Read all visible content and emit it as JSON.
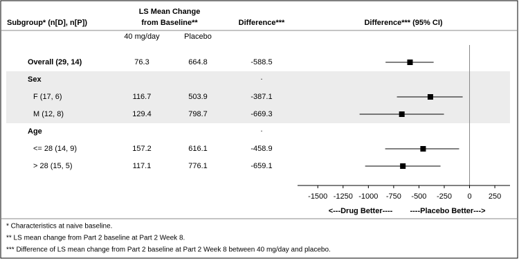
{
  "chart_data": {
    "type": "forest",
    "headers": {
      "subgroup": "Subgroup* (n[D], n[P])",
      "ls_mean": [
        "LS Mean Change",
        "from Baseline**"
      ],
      "difference": "Difference***",
      "plot": "Difference*** (95% CI)"
    },
    "subheaders": [
      "40 mg/day",
      "Placebo"
    ],
    "rows": [
      {
        "label": "Overall (29, 14)",
        "kind": "total",
        "shade": false,
        "values": [
          76.3,
          664.8
        ],
        "difference": -588.5,
        "ci": [
          -830,
          -355
        ]
      },
      {
        "label": "Sex",
        "kind": "group",
        "shade": true,
        "note": "."
      },
      {
        "label": "F (17, 6)",
        "kind": "item",
        "shade": true,
        "values": [
          116.7,
          503.9
        ],
        "difference": -387.1,
        "ci": [
          -718,
          -68
        ]
      },
      {
        "label": "M (12, 8)",
        "kind": "item",
        "shade": true,
        "values": [
          129.4,
          798.7
        ],
        "difference": -669.3,
        "ci": [
          -1087,
          -253
        ]
      },
      {
        "label": "Age",
        "kind": "group",
        "shade": false,
        "note": "."
      },
      {
        "label": "<= 28 (14, 9)",
        "kind": "item",
        "shade": false,
        "values": [
          157.2,
          616.1
        ],
        "difference": -458.9,
        "ci": [
          -834,
          -103
        ]
      },
      {
        "label": "> 28 (15, 5)",
        "kind": "item",
        "shade": false,
        "values": [
          117.1,
          776.1
        ],
        "difference": -659.1,
        "ci": [
          -1032,
          -287
        ]
      }
    ],
    "xlim": [
      -1700,
      400
    ],
    "xticks": [
      -1500,
      -1250,
      -1000,
      -750,
      -500,
      -250,
      0,
      250
    ],
    "reference_line": 0,
    "axis_labels": [
      "<---Drug Better----",
      "----Placebo Better--->"
    ],
    "footnotes": [
      "* Characteristics at naive baseline.",
      "** LS mean change from Part 2 baseline at Part 2 Week 8.",
      "*** Difference of LS mean change from Part 2 baseline at Part 2 Week 8 between 40 mg/day and placebo."
    ]
  }
}
